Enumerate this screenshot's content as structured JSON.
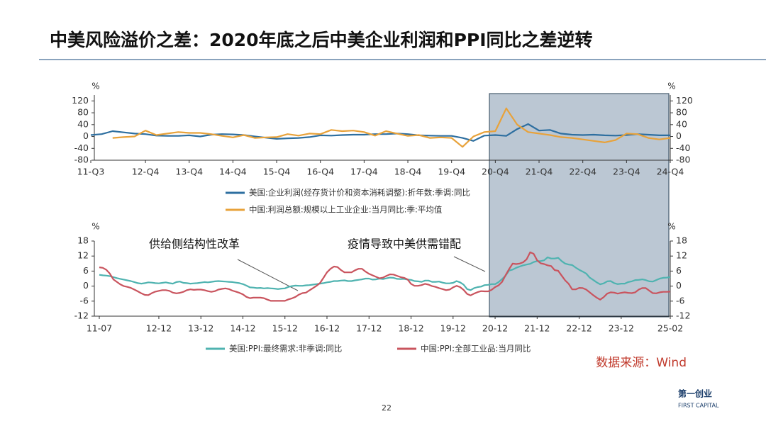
{
  "slide_title": "中美风险溢价之差：2020年底之后中美企业利润和PPI同比之差逆转",
  "chart_data": [
    {
      "type": "line",
      "y_unit": "%",
      "categories": [
        "11-Q3",
        null,
        null,
        null,
        null,
        "12-Q4",
        null,
        null,
        null,
        "13-Q4",
        null,
        null,
        null,
        "14-Q4",
        null,
        null,
        null,
        "15-Q4",
        null,
        null,
        null,
        "16-Q4",
        null,
        null,
        null,
        "17-Q4",
        null,
        null,
        null,
        "18-Q4",
        null,
        null,
        null,
        "19-Q4",
        null,
        null,
        null,
        "20-Q4",
        null,
        null,
        null,
        "21-Q4",
        null,
        null,
        null,
        "22-Q4",
        null,
        null,
        null,
        "23-Q4",
        null,
        null,
        null,
        "24-Q4"
      ],
      "ylim": [
        -80,
        140
      ],
      "yticks": [
        -80,
        -40,
        0,
        40,
        80,
        120
      ],
      "series": [
        {
          "name": "美国:企业利润(经存货计价和资本消耗调整):折年数:季调:同比",
          "color": "#2e6fa0",
          "values": [
            5,
            8,
            18,
            14,
            10,
            8,
            3,
            2,
            2,
            4,
            0,
            6,
            8,
            7,
            5,
            0,
            -4,
            -8,
            -6,
            -5,
            -2,
            4,
            3,
            5,
            6,
            6,
            8,
            8,
            10,
            8,
            4,
            3,
            2,
            2,
            -5,
            -15,
            3,
            5,
            2,
            25,
            42,
            20,
            22,
            10,
            6,
            5,
            6,
            4,
            3,
            5,
            8,
            6,
            4,
            4
          ]
        },
        {
          "name": "中国:利润总额:规模以上工业企业:当月同比:季:平均值",
          "color": "#e8a23a",
          "values": [
            null,
            null,
            -5,
            -2,
            0,
            20,
            5,
            10,
            15,
            12,
            12,
            8,
            2,
            -3,
            5,
            -5,
            -3,
            -2,
            8,
            3,
            10,
            8,
            22,
            18,
            20,
            15,
            3,
            18,
            10,
            2,
            5,
            -5,
            -3,
            -5,
            -35,
            0,
            15,
            18,
            95,
            40,
            15,
            10,
            5,
            -2,
            -5,
            -10,
            -15,
            -20,
            -12,
            10,
            8,
            -5,
            -10,
            -5
          ]
        }
      ]
    },
    {
      "type": "line",
      "y_unit": "%",
      "categories": [
        "11-07",
        null,
        null,
        null,
        null,
        null,
        null,
        null,
        null,
        null,
        null,
        null,
        null,
        null,
        null,
        null,
        null,
        "12-12",
        null,
        null,
        null,
        null,
        null,
        null,
        null,
        null,
        null,
        null,
        null,
        "13-12",
        null,
        null,
        null,
        null,
        null,
        null,
        null,
        null,
        null,
        null,
        null,
        "14-12",
        null,
        null,
        null,
        null,
        null,
        null,
        null,
        null,
        null,
        null,
        null,
        "15-12",
        null,
        null,
        null,
        null,
        null,
        null,
        null,
        null,
        null,
        null,
        null,
        "16-12",
        null,
        null,
        null,
        null,
        null,
        null,
        null,
        null,
        null,
        null,
        null,
        "17-12",
        null,
        null,
        null,
        null,
        null,
        null,
        null,
        null,
        null,
        null,
        null,
        "18-12",
        null,
        null,
        null,
        null,
        null,
        null,
        null,
        null,
        null,
        null,
        null,
        "19-12",
        null,
        null,
        null,
        null,
        null,
        null,
        null,
        null,
        null,
        null,
        null,
        "20-12",
        null,
        null,
        null,
        null,
        null,
        null,
        null,
        null,
        null,
        null,
        null,
        "21-12",
        null,
        null,
        null,
        null,
        null,
        null,
        null,
        null,
        null,
        null,
        null,
        "22-12",
        null,
        null,
        null,
        null,
        null,
        null,
        null,
        null,
        null,
        null,
        null,
        "23-12",
        null,
        null,
        null,
        null,
        null,
        null,
        null,
        null,
        null,
        null,
        null,
        null,
        null,
        "25-02"
      ],
      "ylim": [
        -12,
        18
      ],
      "yticks": [
        -12,
        -6,
        0,
        6,
        12,
        18
      ],
      "annotations": [
        "供给侧结构性改革",
        "疫情导致中美供需错配"
      ],
      "series": [
        {
          "name": "美国:PPI:最终需求:非季调:同比",
          "color": "#4fb3b0",
          "values": [
            4.5,
            4.3,
            4.2,
            4,
            3.6,
            3.2,
            2.9,
            2.6,
            2.3,
            2,
            1.6,
            1.2,
            1.0,
            1.2,
            1.5,
            1.4,
            1.2,
            1.1,
            1.3,
            1.5,
            1.2,
            1.0,
            1.6,
            1.8,
            1.3,
            1.2,
            1.0,
            1.1,
            1.2,
            1.4,
            1.6,
            1.5,
            1.7,
            1.9,
            2.0,
            1.9,
            1.8,
            1.7,
            1.6,
            1.4,
            1.2,
            0.8,
            0.2,
            -0.5,
            -0.6,
            -0.8,
            -0.7,
            -0.9,
            -0.8,
            -0.9,
            -1.0,
            -1.2,
            -1.0,
            -0.9,
            -0.3,
            0,
            0.2,
            0.1,
            0.1,
            0.3,
            0.4,
            0.6,
            0.8,
            1.0,
            1.2,
            1.5,
            1.7,
            2.0,
            2.0,
            2.2,
            2.3,
            2.0,
            2.0,
            2.3,
            2.5,
            2.7,
            3.0,
            3.0,
            2.6,
            2.7,
            3.0,
            2.8,
            3.1,
            3.4,
            3.3,
            2.9,
            2.8,
            2.9,
            2.6,
            2.5,
            2.0,
            1.9,
            1.7,
            2.2,
            2.2,
            1.7,
            1.7,
            1.8,
            1.4,
            1.1,
            1.1,
            1.3,
            2.0,
            1.5,
            0.6,
            -1.2,
            -1.6,
            -0.8,
            -0.4,
            -0.2,
            0.4,
            0.5,
            0.8,
            0.8,
            1.6,
            2.8,
            4.2,
            6.2,
            6.6,
            7.3,
            7.8,
            8.3,
            8.6,
            8.9,
            9.6,
            10.0,
            10.0,
            10.3,
            11.5,
            11.0,
            11.0,
            11.3,
            10.0,
            9.0,
            8.6,
            8.4,
            7.4,
            6.5,
            5.8,
            5.0,
            3.4,
            2.5,
            1.5,
            0.7,
            1.1,
            1.9,
            2.0,
            1.2,
            0.8,
            1.0,
            1.0,
            1.6,
            1.9,
            2.4,
            2.5,
            2.7,
            2.4,
            1.9,
            1.8,
            2.4,
            3.0,
            3.3,
            3.4,
            3.6
          ]
        },
        {
          "name": "中国:PPI:全部工业品:当月同比",
          "color": "#c9545e",
          "values": [
            7.5,
            7.3,
            6.5,
            5.0,
            2.7,
            1.7,
            0.7,
            0.0,
            -0.3,
            -0.7,
            -1.4,
            -2.1,
            -2.9,
            -3.5,
            -3.6,
            -2.8,
            -2.2,
            -1.9,
            -1.6,
            -1.6,
            -1.9,
            -2.6,
            -2.9,
            -2.7,
            -2.3,
            -1.6,
            -1.3,
            -1.5,
            -1.4,
            -1.4,
            -1.6,
            -2.0,
            -2.3,
            -2.0,
            -1.4,
            -1.1,
            -0.9,
            -1.2,
            -1.8,
            -2.2,
            -2.7,
            -3.3,
            -4.3,
            -4.8,
            -4.6,
            -4.6,
            -4.6,
            -4.8,
            -5.4,
            -5.9,
            -5.9,
            -5.9,
            -5.9,
            -5.9,
            -5.3,
            -4.9,
            -4.3,
            -3.4,
            -2.8,
            -2.6,
            -1.7,
            -0.8,
            0.1,
            1.2,
            3.3,
            5.5,
            6.9,
            7.8,
            7.6,
            6.4,
            5.5,
            5.5,
            5.5,
            6.3,
            6.9,
            6.9,
            5.8,
            4.9,
            4.3,
            3.7,
            3.1,
            3.4,
            4.1,
            4.7,
            4.6,
            4.1,
            3.6,
            3.3,
            2.7,
            0.9,
            0.1,
            0.1,
            0.4,
            0.9,
            0.6,
            0.0,
            -0.3,
            -0.8,
            -1.2,
            -1.6,
            -1.4,
            -0.5,
            0.1,
            -0.4,
            -1.5,
            -3.1,
            -3.7,
            -3.0,
            -2.4,
            -2.0,
            -2.1,
            -2.1,
            -1.5,
            -0.4,
            0.3,
            1.7,
            4.4,
            6.8,
            9.0,
            8.8,
            9.0,
            9.5,
            10.7,
            13.5,
            12.9,
            10.3,
            9.1,
            8.8,
            8.3,
            8.0,
            6.4,
            6.1,
            4.2,
            2.3,
            0.9,
            -1.3,
            -1.3,
            -0.7,
            -0.8,
            -1.4,
            -2.5,
            -3.6,
            -4.6,
            -5.4,
            -4.4,
            -3.0,
            -2.5,
            -2.6,
            -3.0,
            -2.7,
            -2.5,
            -2.7,
            -2.8,
            -2.5,
            -1.4,
            -0.8,
            -0.8,
            -1.8,
            -2.8,
            -2.9,
            -2.5,
            -2.3,
            -2.3,
            -2.2
          ]
        }
      ]
    }
  ],
  "source": "数据来源：Wind",
  "page_number": "22",
  "logo": {
    "name": "第一创业",
    "english": "FIRST CAPITAL"
  }
}
